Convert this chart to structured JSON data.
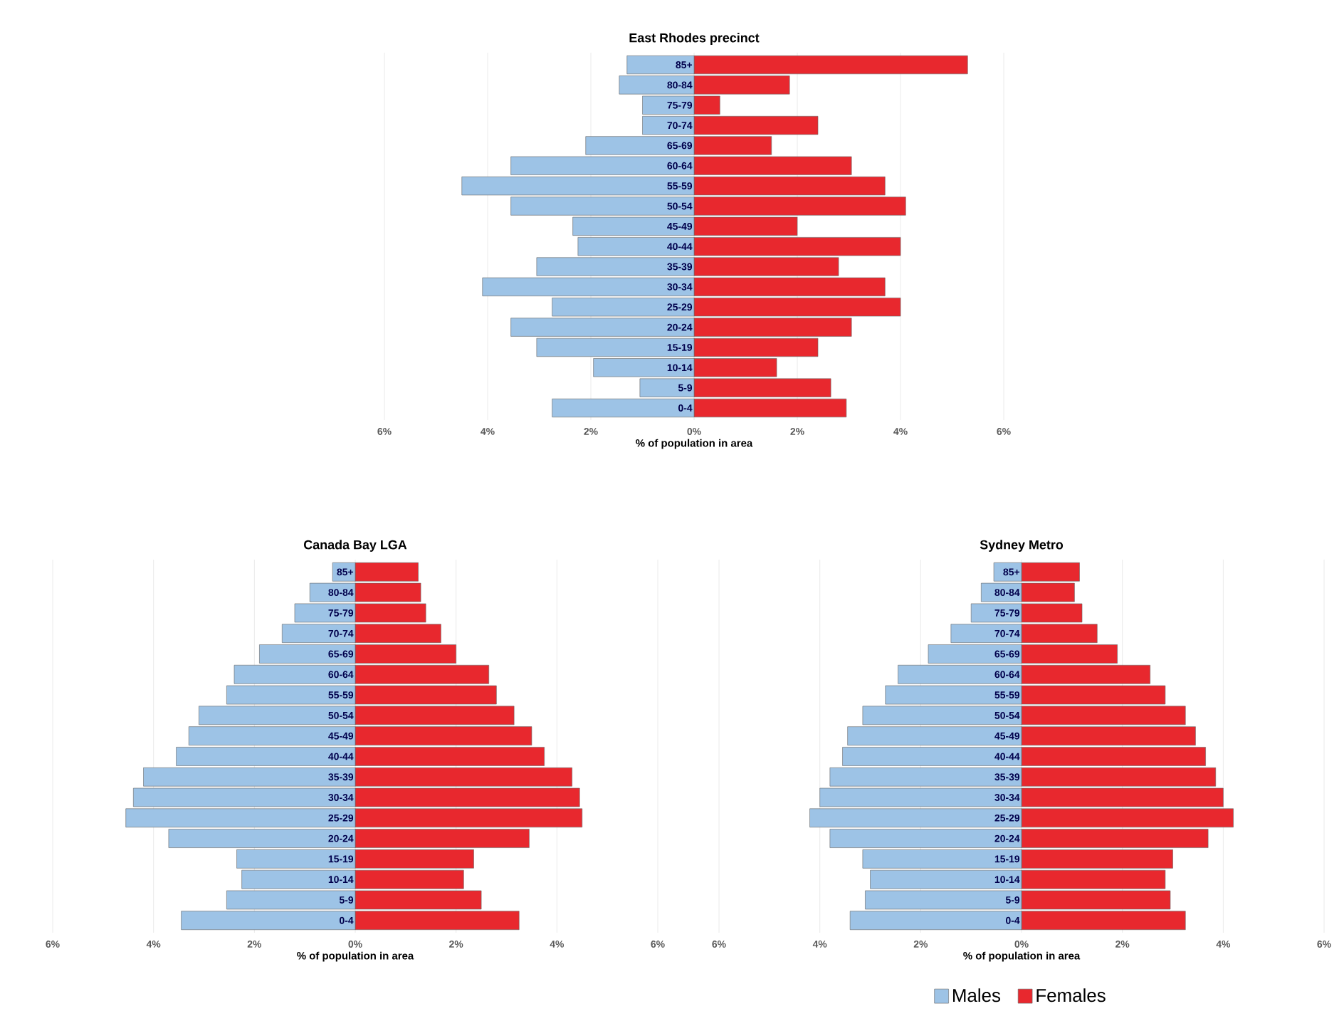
{
  "chart_data": [
    {
      "type": "bar",
      "orientation": "horizontal",
      "stacked": true,
      "title": "East Rhodes precinct",
      "xlabel": "% of population in area",
      "categories": [
        "85+",
        "80-84",
        "75-79",
        "70-74",
        "65-69",
        "60-64",
        "55-59",
        "50-54",
        "45-49",
        "40-44",
        "35-39",
        "30-34",
        "25-29",
        "20-24",
        "15-19",
        "10-14",
        "5-9",
        "0-4"
      ],
      "series": [
        {
          "color": "#9dc3e6",
          "values": [
            -1.3,
            -1.45,
            -1.0,
            -1.0,
            -2.1,
            -3.55,
            -4.5,
            -3.55,
            -2.35,
            -2.25,
            -3.05,
            -4.1,
            -2.75,
            -3.55,
            -3.05,
            -1.95,
            -1.05,
            -2.75
          ]
        },
        {
          "color": "#e8282e",
          "values": [
            5.3,
            1.85,
            0.5,
            2.4,
            1.5,
            3.05,
            3.7,
            4.1,
            2.0,
            4.0,
            2.8,
            3.7,
            4.0,
            3.05,
            2.4,
            1.6,
            2.65,
            2.95
          ]
        }
      ],
      "xlim": [
        -6,
        6
      ],
      "xticks": [
        {
          "value": -6,
          "label": "6%"
        },
        {
          "value": -4,
          "label": "4%"
        },
        {
          "value": -2,
          "label": "2%"
        },
        {
          "value": 0,
          "label": "0%"
        },
        {
          "value": 2,
          "label": "2%"
        },
        {
          "value": 4,
          "label": "4%"
        },
        {
          "value": 6,
          "label": "6%"
        }
      ],
      "grid": "x"
    },
    {
      "type": "bar",
      "orientation": "horizontal",
      "stacked": true,
      "title": "Canada Bay LGA",
      "xlabel": "% of population in area",
      "categories": [
        "85+",
        "80-84",
        "75-79",
        "70-74",
        "65-69",
        "60-64",
        "55-59",
        "50-54",
        "45-49",
        "40-44",
        "35-39",
        "30-34",
        "25-29",
        "20-24",
        "15-19",
        "10-14",
        "5-9",
        "0-4"
      ],
      "series": [
        {
          "color": "#9dc3e6",
          "values": [
            -0.45,
            -0.9,
            -1.2,
            -1.45,
            -1.9,
            -2.4,
            -2.55,
            -3.1,
            -3.3,
            -3.55,
            -4.2,
            -4.4,
            -4.55,
            -3.7,
            -2.35,
            -2.25,
            -2.55,
            -3.45
          ]
        },
        {
          "color": "#e8282e",
          "values": [
            1.25,
            1.3,
            1.4,
            1.7,
            2.0,
            2.65,
            2.8,
            3.15,
            3.5,
            3.75,
            4.3,
            4.45,
            4.5,
            3.45,
            2.35,
            2.15,
            2.5,
            3.25
          ]
        }
      ],
      "xlim": [
        -6,
        6
      ],
      "xticks": [
        {
          "value": -6,
          "label": "6%"
        },
        {
          "value": -4,
          "label": "4%"
        },
        {
          "value": -2,
          "label": "2%"
        },
        {
          "value": 0,
          "label": "0%"
        },
        {
          "value": 2,
          "label": "2%"
        },
        {
          "value": 4,
          "label": "4%"
        },
        {
          "value": 6,
          "label": "6%"
        }
      ],
      "grid": "x"
    },
    {
      "type": "bar",
      "orientation": "horizontal",
      "stacked": true,
      "title": "Sydney Metro",
      "xlabel": "% of population in area",
      "categories": [
        "85+",
        "80-84",
        "75-79",
        "70-74",
        "65-69",
        "60-64",
        "55-59",
        "50-54",
        "45-49",
        "40-44",
        "35-39",
        "30-34",
        "25-29",
        "20-24",
        "15-19",
        "10-14",
        "5-9",
        "0-4"
      ],
      "series": [
        {
          "name": "Males",
          "color": "#9dc3e6",
          "values": [
            -0.55,
            -0.8,
            -1.0,
            -1.4,
            -1.85,
            -2.45,
            -2.7,
            -3.15,
            -3.45,
            -3.55,
            -3.8,
            -4.0,
            -4.2,
            -3.8,
            -3.15,
            -3.0,
            -3.1,
            -3.4
          ]
        },
        {
          "name": "Females",
          "color": "#e8282e",
          "values": [
            1.15,
            1.05,
            1.2,
            1.5,
            1.9,
            2.55,
            2.85,
            3.25,
            3.45,
            3.65,
            3.85,
            4.0,
            4.2,
            3.7,
            3.0,
            2.85,
            2.95,
            3.25
          ]
        }
      ],
      "xlim": [
        -6,
        6
      ],
      "xticks": [
        {
          "value": -6,
          "label": "6%"
        },
        {
          "value": -4,
          "label": "4%"
        },
        {
          "value": -2,
          "label": "2%"
        },
        {
          "value": 0,
          "label": "0%"
        },
        {
          "value": 2,
          "label": "2%"
        },
        {
          "value": 4,
          "label": "4%"
        },
        {
          "value": 6,
          "label": "6%"
        }
      ],
      "grid": "x",
      "legend": "bottom"
    }
  ]
}
